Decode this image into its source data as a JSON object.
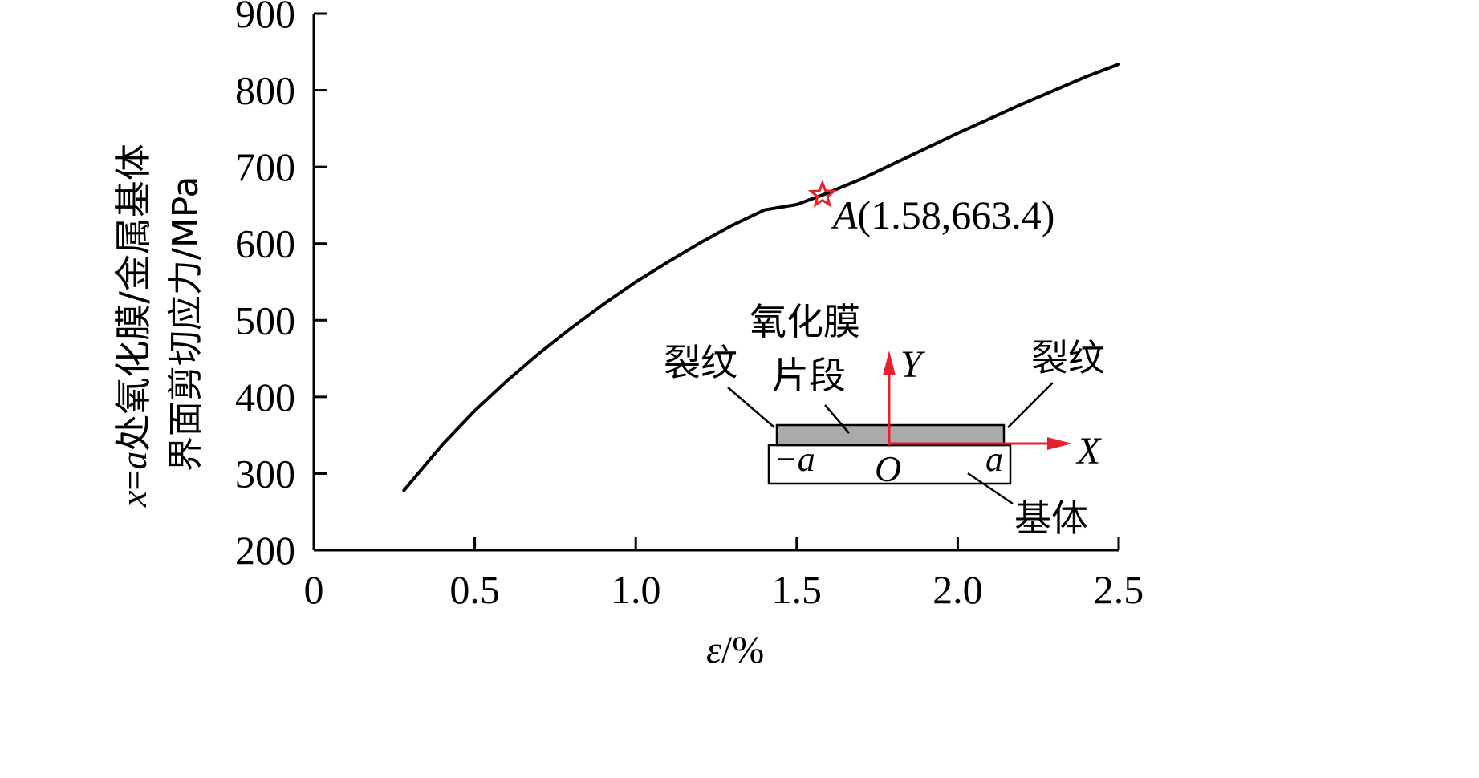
{
  "chart_data": {
    "type": "line",
    "xlabel_var": "ε",
    "xlabel_unit": "/%",
    "ylabel_line1_var": "x",
    "ylabel_line1_eq": "=",
    "ylabel_line1_a": "a",
    "ylabel_line1_rest": "处氧化膜/金属基体",
    "ylabel_line2": "界面剪切应力/MPa",
    "xlim": [
      0,
      2.5
    ],
    "ylim": [
      200,
      900
    ],
    "xticks": [
      0,
      0.5,
      1.0,
      1.5,
      2.0,
      2.5
    ],
    "xtick_labels": [
      "0",
      "0.5",
      "1.0",
      "1.5",
      "2.0",
      "2.5"
    ],
    "yticks": [
      200,
      300,
      400,
      500,
      600,
      700,
      800,
      900
    ],
    "ytick_labels": [
      "200",
      "300",
      "400",
      "500",
      "600",
      "700",
      "800",
      "900"
    ],
    "grid": false,
    "series": [
      {
        "color": "#000000",
        "x": [
          0.28,
          0.4,
          0.5,
          0.6,
          0.7,
          0.8,
          0.9,
          1.0,
          1.1,
          1.2,
          1.3,
          1.4,
          1.5,
          1.58,
          1.7,
          1.8,
          1.9,
          2.0,
          2.1,
          2.2,
          2.3,
          2.4,
          2.5
        ],
        "y": [
          278,
          338,
          382,
          421,
          457,
          490,
          521,
          550,
          576,
          601,
          624,
          644,
          651,
          663.4,
          684,
          704,
          724,
          744,
          763,
          782,
          800,
          818,
          834
        ]
      }
    ],
    "marker": {
      "x": 1.58,
      "y": 663.4,
      "symbol": "star",
      "color": "#e8202a",
      "label_var": "A",
      "label_coords": "(1.58,663.4)"
    },
    "inset": {
      "film_label_line1": "氧化膜",
      "film_label_line2": "片段",
      "crack_left": "裂纹",
      "crack_right": "裂纹",
      "substrate_label": "基体",
      "y_axis": "Y",
      "x_axis": "X",
      "origin": "O",
      "neg_a": "−a",
      "pos_a": "a",
      "film_color": "#aaaaaa",
      "axis_color": "#e8202a"
    }
  }
}
